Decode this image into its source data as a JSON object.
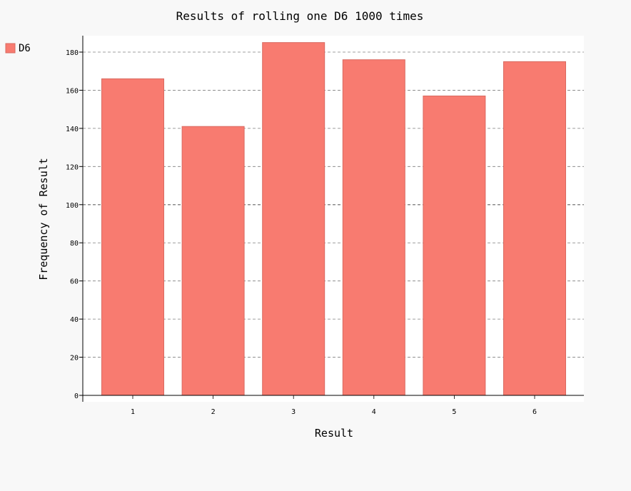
{
  "chart_data": {
    "type": "bar",
    "title": "Results of rolling one D6 1000 times",
    "xlabel": "Result",
    "ylabel": "Frequency of Result",
    "categories": [
      "1",
      "2",
      "3",
      "4",
      "5",
      "6"
    ],
    "series": [
      {
        "name": "D6",
        "values": [
          166,
          141,
          185,
          176,
          157,
          175
        ]
      }
    ],
    "ylim": [
      0,
      190
    ],
    "yticks": [
      0,
      20,
      40,
      60,
      80,
      100,
      120,
      140,
      160,
      180
    ],
    "grid": true,
    "legend": "top-left",
    "colors": {
      "bar_fill": "#f87b70",
      "bar_stroke": "#d96a61",
      "grid": "#555555",
      "plot_background": "#ffffff",
      "page_background": "#f8f8f8"
    }
  }
}
